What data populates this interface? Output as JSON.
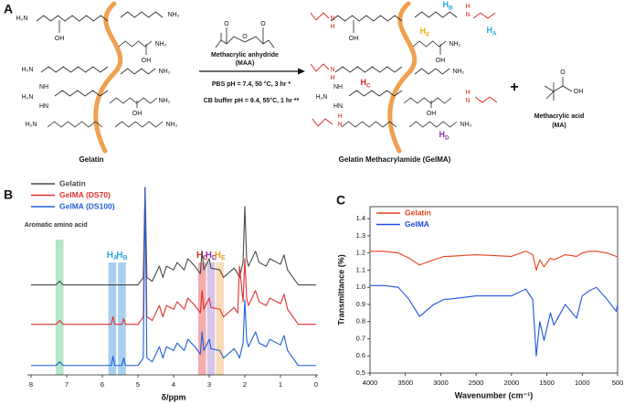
{
  "panel_a": {
    "label": "A",
    "gelatin": {
      "name": "Gelatin",
      "groups": [
        "H₂N",
        "OH",
        "NH₂",
        "OH",
        "NH₂",
        "H₂N",
        "NH₂",
        "NH",
        "H₂N",
        "HN",
        "OH",
        "NH₂",
        "H₂N",
        "NH₂"
      ]
    },
    "reagent": {
      "name": "Methacrylic anhydride",
      "abbr": "(MAA)",
      "atoms": [
        "O",
        "O",
        "O"
      ],
      "conditions": [
        "PBS pH = 7.4, 50 °C, 3 hr *",
        "CB buffer pH = 9.4, 55°C, 1 hr **"
      ]
    },
    "product": {
      "name": "Gelatin Methacrylamide (GelMA)",
      "groups": [
        "N",
        "H",
        "OH",
        "N",
        "H",
        "OH",
        "NH₂",
        "N",
        "H",
        "NH₂",
        "NH",
        "H₂N",
        "HN",
        "OH",
        "N",
        "H",
        "N",
        "H",
        "NH₂"
      ],
      "protons": [
        {
          "base": "H",
          "sub": "B",
          "color": "#29a8e0"
        },
        {
          "base": "H",
          "sub": "A",
          "color": "#29a8e0"
        },
        {
          "base": "H",
          "sub": "E",
          "color": "#f0b000"
        },
        {
          "base": "H",
          "sub": "C",
          "color": "#e02828"
        },
        {
          "base": "H",
          "sub": "D",
          "color": "#8a2fb0"
        }
      ]
    },
    "plus": "+",
    "byproduct": {
      "name": "Methacrylic acid",
      "abbr": "(MA)",
      "atoms": [
        "O",
        "OH"
      ]
    }
  },
  "chart_data": [
    {
      "type": "line",
      "panel": "B",
      "x_label": "δ/ppm",
      "xlim": [
        8,
        0
      ],
      "xticks": [
        8,
        7,
        6,
        5,
        4,
        3,
        2,
        1,
        0
      ],
      "ylim": [
        0,
        100
      ],
      "frame": false,
      "legend": "upper left",
      "x": [
        8,
        7.5,
        7.3,
        7.2,
        7.1,
        6.5,
        6,
        5.75,
        5.7,
        5.65,
        5.45,
        5.4,
        5.35,
        5,
        4.85,
        4.8,
        4.75,
        4.6,
        4.4,
        4.3,
        4.2,
        4,
        3.9,
        3.7,
        3.6,
        3.4,
        3.25,
        3.2,
        3.15,
        3,
        2.95,
        2.7,
        2.6,
        2.3,
        2.2,
        2.15,
        2.05,
        2,
        1.95,
        1.9,
        1.7,
        1.6,
        1.4,
        1.3,
        1,
        0.9,
        0.8,
        0.5,
        0
      ],
      "series": [
        {
          "name": "Gelatin",
          "color": "#4a4a4a",
          "values": [
            48,
            48,
            48,
            50,
            48,
            48,
            48,
            48,
            48,
            48,
            48,
            48,
            48,
            48,
            52,
            100,
            52,
            50,
            58,
            52,
            58,
            56,
            60,
            56,
            62,
            58,
            54,
            66,
            56,
            62,
            57,
            56,
            52,
            57,
            54,
            52,
            60,
            90,
            62,
            58,
            66,
            60,
            58,
            62,
            59,
            64,
            56,
            48,
            48
          ]
        },
        {
          "name": "GelMA (DS70)",
          "color": "#e03030",
          "values": [
            27,
            27,
            27,
            29,
            27,
            27,
            27,
            27,
            31,
            27,
            27,
            30,
            27,
            27,
            31,
            100,
            31,
            29,
            37,
            31,
            37,
            35,
            39,
            35,
            41,
            37,
            33,
            45,
            35,
            41,
            36,
            35,
            31,
            36,
            33,
            58,
            39,
            62,
            41,
            37,
            45,
            39,
            37,
            41,
            38,
            43,
            35,
            27,
            27
          ]
        },
        {
          "name": "GelMA (DS100)",
          "color": "#1f5fd6",
          "values": [
            5,
            5,
            5,
            7,
            5,
            5,
            5,
            5,
            10,
            5,
            5,
            9,
            5,
            5,
            9,
            100,
            9,
            7,
            15,
            9,
            15,
            13,
            17,
            13,
            19,
            15,
            11,
            23,
            13,
            19,
            14,
            13,
            9,
            14,
            11,
            9,
            17,
            40,
            19,
            15,
            23,
            17,
            15,
            19,
            16,
            21,
            13,
            5,
            5
          ]
        }
      ],
      "regions": [
        {
          "text": "Aromatic amino acid",
          "center": 7.2,
          "color": "#8ed8a8"
        },
        {
          "base": "H",
          "sub": "A",
          "center": 5.72,
          "color": "#7ab6e6",
          "text_color": "#29a8e0"
        },
        {
          "base": "H",
          "sub": "B",
          "center": 5.45,
          "color": "#7ab6e6",
          "text_color": "#29a8e0"
        },
        {
          "base": "H",
          "sub": "C",
          "center": 3.2,
          "color": "#ee8080",
          "text_color": "#e02828"
        },
        {
          "base": "H",
          "sub": "D",
          "center": 2.95,
          "color": "#c0a8e0",
          "text_color": "#8a2fb0"
        },
        {
          "base": "H",
          "sub": "E",
          "center": 2.7,
          "color": "#f8c890",
          "text_color": "#f0a020"
        }
      ]
    },
    {
      "type": "line",
      "panel": "C",
      "x_label": "Wavenumber (cm⁻¹)",
      "y_label": "Transmittance (%)",
      "xlim": [
        4000,
        500
      ],
      "xticks": [
        4000,
        3500,
        3000,
        2500,
        2000,
        1500,
        1000,
        500
      ],
      "ylim": [
        0.5,
        1.47
      ],
      "yticks": [
        0.5,
        0.6,
        0.7,
        0.8,
        0.9,
        {
          "value": 1,
          "label": "1.0"
        },
        1.1,
        1.2,
        1.3,
        1.4
      ],
      "frame": true,
      "legend": "upper left",
      "x": [
        4000,
        3800,
        3600,
        3450,
        3300,
        3100,
        2950,
        2900,
        2500,
        2000,
        1800,
        1700,
        1650,
        1600,
        1540,
        1450,
        1400,
        1240,
        1080,
        1000,
        900,
        800,
        650,
        520,
        500
      ],
      "series": [
        {
          "name": "Gelatin",
          "color": "#e8401c",
          "values": [
            1.21,
            1.21,
            1.2,
            1.17,
            1.13,
            1.16,
            1.18,
            1.18,
            1.19,
            1.18,
            1.21,
            1.19,
            1.1,
            1.16,
            1.12,
            1.17,
            1.16,
            1.19,
            1.18,
            1.2,
            1.21,
            1.21,
            1.2,
            1.18,
            1.18
          ]
        },
        {
          "name": "GelMA",
          "color": "#1f4fe0",
          "values": [
            1.01,
            1.01,
            1,
            0.93,
            0.83,
            0.9,
            0.93,
            0.93,
            0.95,
            0.95,
            0.99,
            0.93,
            0.6,
            0.8,
            0.69,
            0.85,
            0.78,
            0.9,
            0.82,
            0.95,
            0.98,
            1,
            0.93,
            0.86,
            0.9
          ]
        }
      ]
    }
  ]
}
